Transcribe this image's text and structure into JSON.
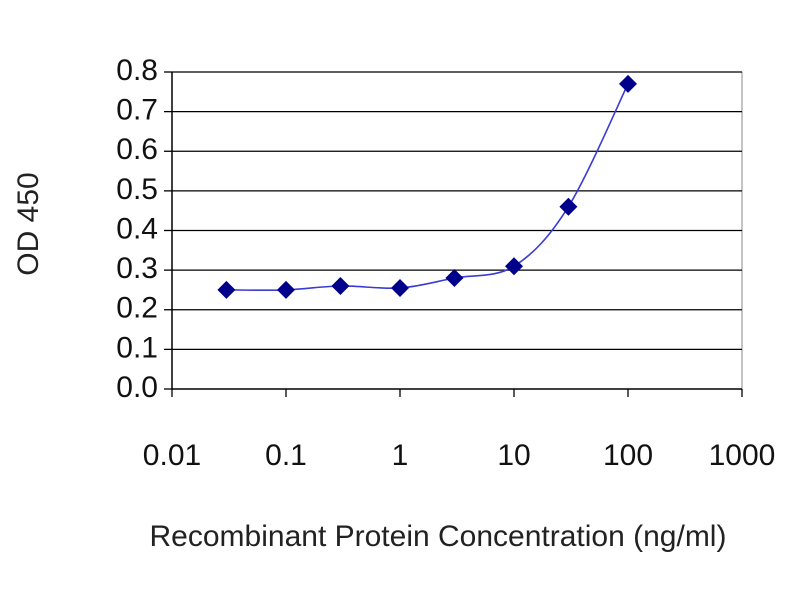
{
  "chart_data": {
    "type": "scatter",
    "xlabel": "Recombinant Protein Concentration (ng/ml)",
    "ylabel": "OD 450",
    "xscale": "log",
    "xlim": [
      0.01,
      1000
    ],
    "ylim": [
      0.0,
      0.8
    ],
    "x_ticks": [
      "0.01",
      "0.1",
      "1",
      "10",
      "100",
      "1000"
    ],
    "y_ticks": [
      "0.0",
      "0.1",
      "0.2",
      "0.3",
      "0.4",
      "0.5",
      "0.6",
      "0.7",
      "0.8"
    ],
    "grid": "horizontal",
    "legend": "none",
    "series": [
      {
        "color": "#00008b",
        "line_color": "#3b3bd6",
        "marker": "diamond",
        "smooth_line": true,
        "x": [
          0.03,
          0.1,
          0.3,
          1,
          3,
          10,
          30,
          100
        ],
        "y": [
          0.25,
          0.25,
          0.26,
          0.255,
          0.28,
          0.31,
          0.46,
          0.77
        ]
      }
    ]
  }
}
